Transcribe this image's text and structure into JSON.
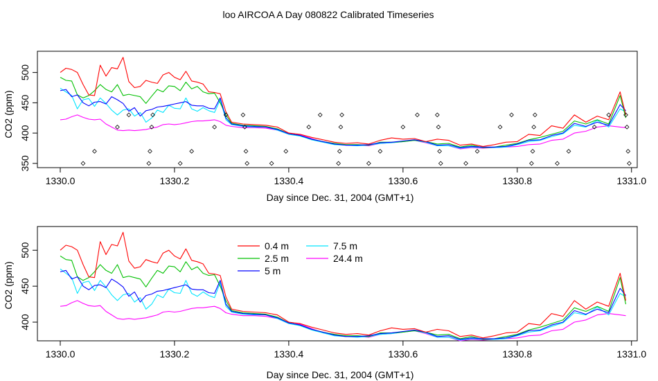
{
  "title": "loo AIRCOA A  Day 080822  Calibrated Timeseries",
  "chart_data": [
    {
      "type": "line",
      "panel": "top",
      "xlabel": "Day since Dec. 31, 2004 (GMT+1)",
      "ylabel": "CO2 (ppm)",
      "xlim": [
        1329.96,
        1331.01
      ],
      "ylim": [
        343,
        535
      ],
      "xticks": [
        {
          "v": 1330.0,
          "label": "1330.0"
        },
        {
          "v": 1330.2,
          "label": "1330.2"
        },
        {
          "v": 1330.4,
          "label": "1330.4"
        },
        {
          "v": 1330.6,
          "label": "1330.6"
        },
        {
          "v": 1330.8,
          "label": "1330.8"
        },
        {
          "v": 1331.0,
          "label": "1331.0"
        }
      ],
      "yticks": [
        {
          "v": 350,
          "label": "350"
        },
        {
          "v": 400,
          "label": "400"
        },
        {
          "v": 450,
          "label": "450"
        },
        {
          "v": 500,
          "label": "500"
        }
      ],
      "legend": null,
      "points": [
        [
          1330.04,
          350
        ],
        [
          1330.06,
          370
        ],
        [
          1330.1,
          410
        ],
        [
          1330.12,
          430
        ],
        [
          1330.155,
          350
        ],
        [
          1330.157,
          370
        ],
        [
          1330.16,
          410
        ],
        [
          1330.162,
          430
        ],
        [
          1330.21,
          350
        ],
        [
          1330.23,
          370
        ],
        [
          1330.27,
          410
        ],
        [
          1330.29,
          430
        ],
        [
          1330.32,
          430
        ],
        [
          1330.323,
          410
        ],
        [
          1330.325,
          370
        ],
        [
          1330.327,
          350
        ],
        [
          1330.37,
          350
        ],
        [
          1330.395,
          370
        ],
        [
          1330.435,
          410
        ],
        [
          1330.455,
          430
        ],
        [
          1330.487,
          350
        ],
        [
          1330.489,
          370
        ],
        [
          1330.491,
          410
        ],
        [
          1330.493,
          430
        ],
        [
          1330.54,
          350
        ],
        [
          1330.56,
          370
        ],
        [
          1330.6,
          410
        ],
        [
          1330.625,
          430
        ],
        [
          1330.66,
          430
        ],
        [
          1330.662,
          410
        ],
        [
          1330.664,
          370
        ],
        [
          1330.666,
          350
        ],
        [
          1330.71,
          350
        ],
        [
          1330.73,
          370
        ],
        [
          1330.77,
          410
        ],
        [
          1330.79,
          430
        ],
        [
          1330.825,
          350
        ],
        [
          1330.827,
          370
        ],
        [
          1330.829,
          410
        ],
        [
          1330.831,
          430
        ],
        [
          1330.87,
          350
        ],
        [
          1330.89,
          370
        ],
        [
          1330.935,
          410
        ],
        [
          1330.96,
          430
        ],
        [
          1330.99,
          430
        ],
        [
          1330.992,
          410
        ],
        [
          1330.994,
          370
        ],
        [
          1330.996,
          350
        ]
      ]
    },
    {
      "type": "line",
      "panel": "bottom",
      "xlabel": "Day since Dec. 31, 2004 (GMT+1)",
      "ylabel": "CO2 (ppm)",
      "xlim": [
        1329.96,
        1331.01
      ],
      "ylim": [
        374,
        533
      ],
      "xticks": [
        {
          "v": 1330.0,
          "label": "1330.0"
        },
        {
          "v": 1330.2,
          "label": "1330.2"
        },
        {
          "v": 1330.4,
          "label": "1330.4"
        },
        {
          "v": 1330.6,
          "label": "1330.6"
        },
        {
          "v": 1330.8,
          "label": "1330.8"
        },
        {
          "v": 1331.0,
          "label": "1331.0"
        }
      ],
      "yticks": [
        {
          "v": 400,
          "label": "400"
        },
        {
          "v": 450,
          "label": "450"
        },
        {
          "v": 500,
          "label": "500"
        }
      ],
      "legend": "top-left",
      "legend_entries": [
        {
          "name": "0.4 m",
          "color": "#ff0000"
        },
        {
          "name": "2.5 m",
          "color": "#00c000"
        },
        {
          "name": "5 m",
          "color": "#0000ff"
        },
        {
          "name": "7.5 m",
          "color": "#00e5ff"
        },
        {
          "name": "24.4 m",
          "color": "#ff00ff"
        }
      ]
    }
  ],
  "shared_x": [
    1330.0,
    1330.01,
    1330.02,
    1330.03,
    1330.04,
    1330.05,
    1330.06,
    1330.07,
    1330.08,
    1330.09,
    1330.1,
    1330.11,
    1330.12,
    1330.13,
    1330.14,
    1330.15,
    1330.16,
    1330.17,
    1330.18,
    1330.19,
    1330.2,
    1330.21,
    1330.22,
    1330.23,
    1330.24,
    1330.25,
    1330.26,
    1330.27,
    1330.28,
    1330.29,
    1330.3,
    1330.32,
    1330.34,
    1330.36,
    1330.38,
    1330.4,
    1330.42,
    1330.44,
    1330.46,
    1330.48,
    1330.5,
    1330.52,
    1330.54,
    1330.56,
    1330.58,
    1330.6,
    1330.62,
    1330.64,
    1330.66,
    1330.68,
    1330.7,
    1330.72,
    1330.74,
    1330.76,
    1330.78,
    1330.8,
    1330.82,
    1330.84,
    1330.86,
    1330.88,
    1330.9,
    1330.92,
    1330.94,
    1330.96,
    1330.98,
    1330.99
  ],
  "series": [
    {
      "name": "0.4 m",
      "color": "#ff0000",
      "values": [
        500,
        507,
        505,
        500,
        480,
        463,
        462,
        512,
        494,
        508,
        506,
        525,
        485,
        475,
        477,
        487,
        484,
        482,
        496,
        500,
        492,
        488,
        502,
        486,
        484,
        481,
        468,
        467,
        465,
        435,
        418,
        415,
        414,
        413,
        410,
        400,
        398,
        393,
        389,
        385,
        383,
        384,
        382,
        388,
        392,
        390,
        391,
        386,
        390,
        388,
        380,
        382,
        378,
        381,
        385,
        386,
        398,
        396,
        412,
        408,
        430,
        418,
        428,
        422,
        468,
        430
      ]
    },
    {
      "name": "2.5 m",
      "color": "#00c000",
      "values": [
        492,
        487,
        486,
        463,
        458,
        462,
        470,
        480,
        472,
        468,
        480,
        462,
        464,
        462,
        460,
        449,
        461,
        472,
        468,
        478,
        477,
        470,
        484,
        473,
        477,
        468,
        465,
        466,
        450,
        430,
        416,
        413,
        412,
        411,
        407,
        399,
        396,
        390,
        386,
        383,
        381,
        381,
        380,
        385,
        385,
        386,
        388,
        386,
        382,
        383,
        377,
        380,
        376,
        377,
        380,
        383,
        389,
        393,
        398,
        403,
        420,
        415,
        422,
        415,
        462,
        425
      ]
    },
    {
      "name": "5 m",
      "color": "#0000ff",
      "values": [
        470,
        472,
        460,
        463,
        450,
        445,
        451,
        452,
        448,
        460,
        455,
        449,
        436,
        442,
        428,
        437,
        439,
        443,
        444,
        446,
        448,
        450,
        452,
        446,
        445,
        445,
        441,
        440,
        458,
        425,
        415,
        412,
        411,
        410,
        406,
        399,
        396,
        390,
        386,
        382,
        380,
        380,
        381,
        384,
        385,
        387,
        389,
        386,
        380,
        381,
        376,
        378,
        377,
        377,
        378,
        382,
        388,
        389,
        396,
        400,
        416,
        411,
        418,
        413,
        447,
        437
      ]
    },
    {
      "name": "7.5 m",
      "color": "#00e5ff",
      "values": [
        474,
        468,
        462,
        440,
        455,
        457,
        444,
        458,
        449,
        438,
        430,
        438,
        440,
        428,
        434,
        418,
        425,
        438,
        434,
        446,
        441,
        440,
        458,
        440,
        436,
        442,
        437,
        434,
        455,
        422,
        414,
        411,
        410,
        410,
        405,
        398,
        395,
        389,
        385,
        381,
        380,
        379,
        380,
        383,
        384,
        386,
        388,
        385,
        379,
        379,
        375,
        377,
        376,
        376,
        377,
        381,
        386,
        388,
        394,
        399,
        413,
        410,
        421,
        410,
        440,
        435
      ]
    },
    {
      "name": "24.4 m",
      "color": "#ff00ff",
      "values": [
        422,
        423,
        427,
        430,
        426,
        423,
        422,
        423,
        415,
        410,
        405,
        404,
        405,
        404,
        405,
        406,
        408,
        410,
        414,
        415,
        414,
        415,
        417,
        419,
        420,
        420,
        421,
        422,
        419,
        413,
        411,
        409,
        409,
        408,
        405,
        398,
        397,
        391,
        385,
        382,
        380,
        380,
        379,
        383,
        384,
        386,
        388,
        384,
        379,
        379,
        374,
        376,
        375,
        376,
        377,
        378,
        381,
        382,
        388,
        390,
        400,
        403,
        410,
        412,
        410,
        409
      ]
    }
  ]
}
